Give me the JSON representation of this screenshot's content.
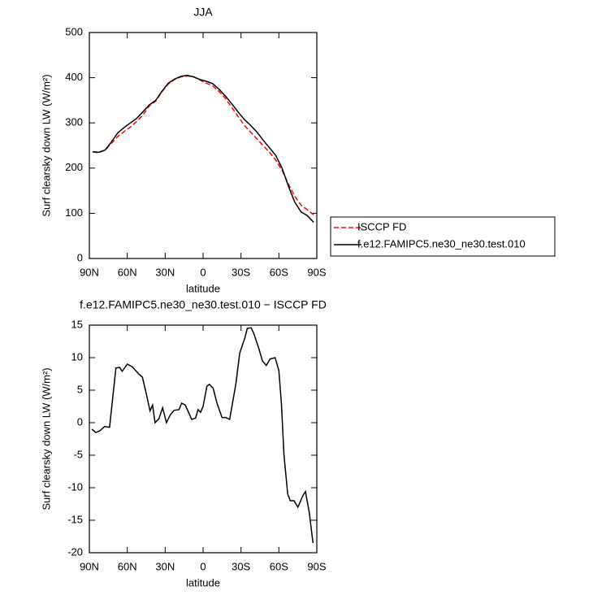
{
  "chart_data": [
    {
      "type": "line",
      "title": "JJA",
      "xlabel": "latitude",
      "ylabel": "Surf clearsky down LW (W/m²)",
      "x": [
        87.5,
        82.5,
        77.5,
        72.5,
        67.5,
        62.5,
        57.5,
        52.5,
        47.5,
        42.5,
        37.5,
        32.5,
        27.5,
        22.5,
        17.5,
        12.5,
        7.5,
        2.5,
        -2.5,
        -7.5,
        -12.5,
        -17.5,
        -22.5,
        -27.5,
        -32.5,
        -37.5,
        -42.5,
        -47.5,
        -52.5,
        -57.5,
        -62.5,
        -67.5,
        -72.5,
        -77.5,
        -82.5,
        -87.5
      ],
      "series": [
        {
          "name": "ISCCP FD",
          "color": "#ff0000",
          "linestyle": "dashed",
          "values": [
            236,
            234,
            240,
            255,
            270,
            281,
            291,
            303,
            318,
            338,
            348,
            369,
            386,
            396,
            402,
            404,
            402,
            395,
            388,
            382,
            370,
            355,
            335,
            315,
            295,
            280,
            265,
            250,
            235,
            218,
            195,
            165,
            138,
            118,
            108,
            97
          ]
        },
        {
          "name": "f.e12.FAMIPC5.ne30_ne30.test.010",
          "color": "#000000",
          "linestyle": "solid",
          "values": [
            236,
            235,
            240,
            258,
            278,
            290,
            300,
            310,
            325,
            340,
            350,
            370,
            388,
            397,
            403,
            405,
            402,
            396,
            392,
            387,
            375,
            360,
            343,
            325,
            308,
            295,
            280,
            262,
            245,
            228,
            200,
            160,
            125,
            103,
            95,
            80
          ]
        }
      ],
      "xlim": [
        90,
        -90
      ],
      "xticks": [
        {
          "value": 90,
          "label": "90N"
        },
        {
          "value": 60,
          "label": "60N"
        },
        {
          "value": 30,
          "label": "30N"
        },
        0,
        {
          "value": -30,
          "label": "30S"
        },
        {
          "value": -60,
          "label": "60S"
        },
        {
          "value": -90,
          "label": "90S"
        }
      ],
      "ylim": [
        0,
        500
      ],
      "yticks": [
        0,
        100,
        200,
        300,
        400,
        500
      ],
      "legend": "outside right"
    },
    {
      "type": "line",
      "title": "f.e12.FAMIPC5.ne30_ne30.test.010 − ISCCP FD",
      "xlabel": "latitude",
      "ylabel": "Surf clearsky down LW (W/m²)",
      "x": [
        88,
        85,
        82,
        78,
        74,
        69,
        66,
        64,
        60,
        56,
        51,
        48,
        45,
        42,
        40,
        38,
        35,
        32,
        29,
        26,
        23,
        19,
        17,
        14,
        12,
        9,
        6,
        4,
        2,
        0,
        -3,
        -5,
        -8,
        -11,
        -15,
        -18,
        -21,
        -26,
        -29,
        -33,
        -35,
        -38,
        -40,
        -44,
        -47,
        -50,
        -53,
        -57,
        -60,
        -62,
        -64,
        -67,
        -69,
        -72,
        -75,
        -79,
        -81,
        -84,
        -87
      ],
      "values": [
        -1,
        -1.5,
        -1.3,
        -0.6,
        -0.7,
        8.4,
        8.5,
        7.9,
        9,
        8.6,
        7.5,
        7,
        4.5,
        1.8,
        2.7,
        0,
        0.6,
        2.3,
        0,
        1.2,
        1.9,
        2,
        3,
        2.7,
        1.8,
        0.5,
        0.7,
        2,
        1.6,
        2.5,
        5.6,
        5.9,
        5.3,
        3,
        0.8,
        0.8,
        0.5,
        6,
        10.7,
        13,
        14.5,
        14.6,
        13.8,
        11.5,
        9.5,
        8.8,
        9.8,
        10,
        8,
        3,
        -5,
        -11,
        -12,
        -12,
        -13,
        -11.2,
        -10.6,
        -13.8,
        -18.5
      ],
      "color": "#000000",
      "xlim": [
        90,
        -90
      ],
      "xticks": [
        {
          "value": 90,
          "label": "90N"
        },
        {
          "value": 60,
          "label": "60N"
        },
        {
          "value": 30,
          "label": "30N"
        },
        0,
        {
          "value": -30,
          "label": "30S"
        },
        {
          "value": -60,
          "label": "60S"
        },
        {
          "value": -90,
          "label": "90S"
        }
      ],
      "ylim": [
        -20,
        15
      ],
      "yticks": [
        15,
        10,
        5,
        0,
        -5,
        -10,
        -15,
        -20
      ]
    }
  ]
}
